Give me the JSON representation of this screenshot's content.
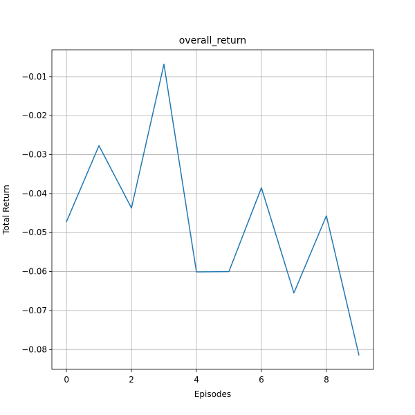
{
  "chart_data": {
    "type": "line",
    "title": "overall_return",
    "xlabel": "Episodes",
    "ylabel": "Total Return",
    "x": [
      0,
      1,
      2,
      3,
      4,
      5,
      6,
      7,
      8,
      9
    ],
    "series": [
      {
        "values": [
          -0.0472,
          -0.0277,
          -0.0437,
          -0.0068,
          -0.0601,
          -0.06,
          -0.0385,
          -0.0655,
          -0.0457,
          -0.0814
        ],
        "color": "#1f77b4"
      }
    ],
    "xticks": [
      0,
      2,
      4,
      6,
      8
    ],
    "xtick_labels": [
      "0",
      "2",
      "4",
      "6",
      "8"
    ],
    "yticks": [
      -0.08,
      -0.07,
      -0.06,
      -0.05,
      -0.04,
      -0.03,
      -0.02,
      -0.01
    ],
    "ytick_labels": [
      "−0.08",
      "−0.07",
      "−0.06",
      "−0.05",
      "−0.04",
      "−0.03",
      "−0.02",
      "−0.01"
    ],
    "xlim": [
      -0.45,
      9.45
    ],
    "ylim": [
      -0.0851,
      -0.0031
    ],
    "grid": true
  }
}
